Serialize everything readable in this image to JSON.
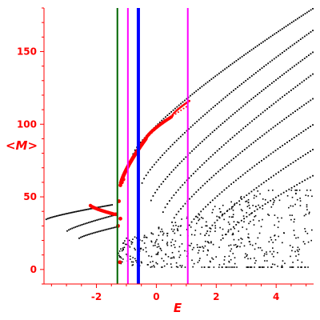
{
  "chart_data": {
    "type": "scatter",
    "xlabel": "E",
    "ylabel": "<M>",
    "xlim": [
      -3.75,
      5.25
    ],
    "ylim": [
      -10,
      180
    ],
    "xticks": [
      -2,
      0,
      2,
      4
    ],
    "yticks": [
      0,
      50,
      100,
      150
    ],
    "colors": {
      "axes": "#ff0000",
      "points_black": "#000000",
      "points_red": "#ff0000",
      "line_green": "#006400",
      "line_blue": "#0000ff",
      "line_magenta": "#ff00ff"
    },
    "vlines": [
      {
        "x": -1.3,
        "color": "#006400",
        "style": "green"
      },
      {
        "x": -0.95,
        "color": "#ff00ff",
        "style": "magenta"
      },
      {
        "x": -0.6,
        "color": "#0000ff",
        "style": "blue-thick"
      },
      {
        "x": 1.05,
        "color": "#ff00ff",
        "style": "magenta"
      }
    ],
    "curves_black": [
      {
        "x0": -3.7,
        "y0": 35,
        "x1": -1.5,
        "y1": 45,
        "n": 45
      },
      {
        "x0": -3.0,
        "y0": 27,
        "x1": -1.4,
        "y1": 38,
        "n": 30
      },
      {
        "x0": -2.6,
        "y0": 22,
        "x1": -1.3,
        "y1": 30,
        "n": 25
      },
      {
        "x0": -0.8,
        "y0": 80,
        "x1": 5.2,
        "y1": 180,
        "n": 95
      },
      {
        "x0": -0.5,
        "y0": 60,
        "x1": 5.2,
        "y1": 165,
        "n": 85
      },
      {
        "x0": -0.2,
        "y0": 48,
        "x1": 5.2,
        "y1": 150,
        "n": 80
      },
      {
        "x0": 0.2,
        "y0": 40,
        "x1": 5.2,
        "y1": 135,
        "n": 70
      },
      {
        "x0": 0.5,
        "y0": 33,
        "x1": 5.2,
        "y1": 118,
        "n": 65
      },
      {
        "x0": 1.0,
        "y0": 28,
        "x1": 5.2,
        "y1": 100,
        "n": 55
      },
      {
        "x0": 1.6,
        "y0": 24,
        "x1": 5.2,
        "y1": 83,
        "n": 45
      },
      {
        "x0": 2.2,
        "y0": 22,
        "x1": 5.2,
        "y1": 65,
        "n": 35
      }
    ],
    "curves_red": [
      {
        "x0": -1.2,
        "y0": 58,
        "x1": -0.35,
        "y1": 90,
        "n": 55,
        "size": 2.4
      },
      {
        "x0": -0.35,
        "y0": 90,
        "x1": 0.5,
        "y1": 105,
        "n": 30,
        "size": 2.0
      },
      {
        "x0": 0.5,
        "y0": 105,
        "x1": 1.1,
        "y1": 116,
        "n": 14,
        "size": 1.4
      },
      {
        "x0": -0.5,
        "y0": 85,
        "x1": 1.0,
        "y1": 112,
        "n": 18,
        "size": 1.0
      },
      {
        "x0": -2.2,
        "y0": 44,
        "x1": -1.4,
        "y1": 38,
        "n": 20,
        "size": 2.2
      }
    ],
    "red_points": [
      {
        "x": -1.25,
        "y": 47
      },
      {
        "x": -1.35,
        "y": 38
      },
      {
        "x": -1.2,
        "y": 35
      },
      {
        "x": -1.28,
        "y": 30
      },
      {
        "x": -1.22,
        "y": 5
      },
      {
        "x": -1.15,
        "y": 60
      },
      {
        "x": -1.1,
        "y": 62
      }
    ],
    "cloud": {
      "x0": -1.3,
      "x1": 5.2,
      "y0": 2,
      "y1": 55,
      "n": 520
    }
  }
}
